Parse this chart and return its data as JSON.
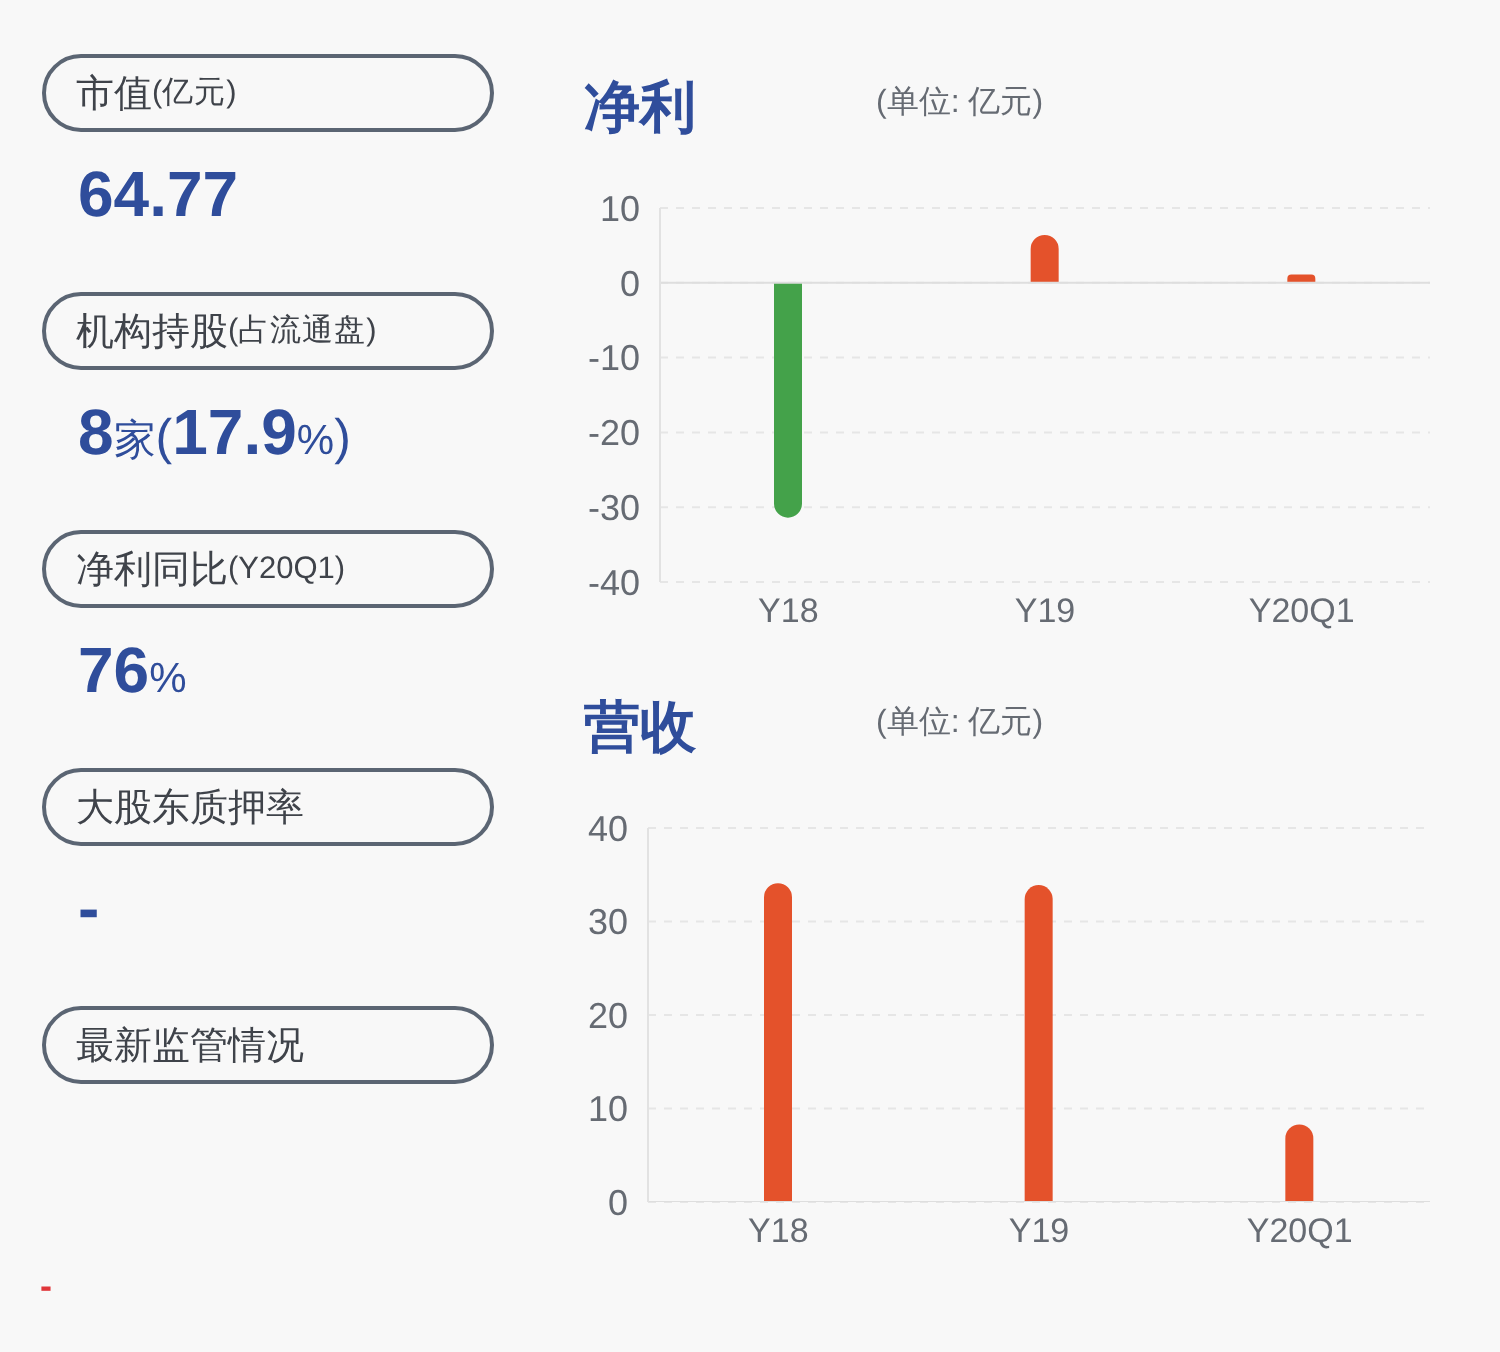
{
  "chart_data": [
    {
      "type": "other",
      "categories": [
        "市值(亿元)",
        "机构持股(占流通盘)",
        "净利同比(Y20Q1)",
        "大股东质押率",
        "最新监管情况"
      ],
      "annotations": [
        "64.77",
        "8家(17.9%)",
        "76%",
        "-",
        "-"
      ],
      "colors": [
        "#2f4d9b",
        "#2f4d9b",
        "#2f4d9b",
        "#2f4d9b",
        "#e0363a"
      ]
    },
    {
      "type": "bar",
      "title": "净利",
      "subtitle": "(单位: 亿元)",
      "categories": [
        "Y18",
        "Y19",
        "Y20Q1"
      ],
      "values": [
        -31.4,
        6.4,
        1.1
      ],
      "colors": [
        "#44a24a",
        "#e4522b",
        "#e4522b"
      ],
      "ylim": [
        -40,
        10
      ],
      "yticks": [
        -40,
        -30,
        -20,
        -10,
        0,
        10
      ],
      "grid": "y"
    },
    {
      "type": "bar",
      "title": "营收",
      "subtitle": "(单位: 亿元)",
      "categories": [
        "Y18",
        "Y19",
        "Y20Q1"
      ],
      "values": [
        34.1,
        33.9,
        8.3
      ],
      "colors": [
        "#e4522b",
        "#e4522b",
        "#e4522b"
      ],
      "ylim": [
        0,
        40
      ],
      "yticks": [
        0,
        10,
        20,
        30,
        40
      ],
      "grid": "y"
    }
  ]
}
